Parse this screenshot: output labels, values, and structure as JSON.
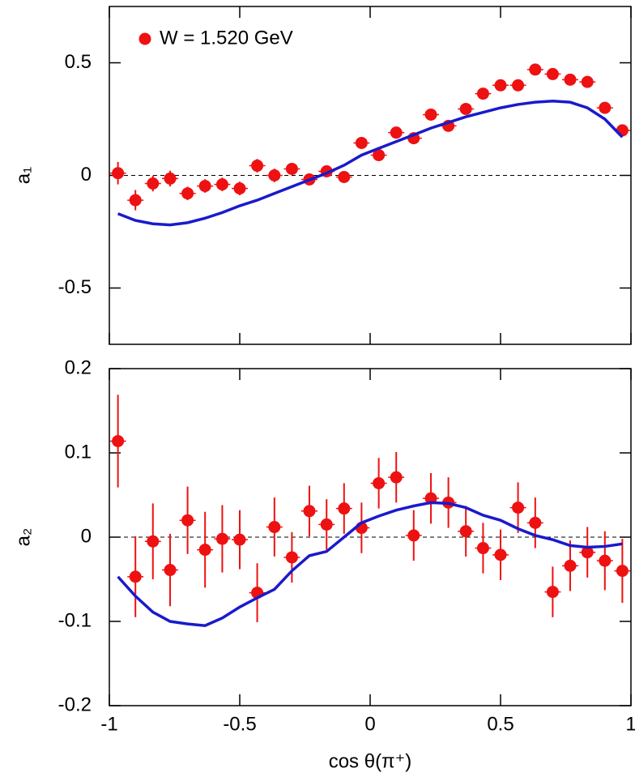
{
  "chart_data": [
    {
      "type": "scatter",
      "ylabel": "a₁",
      "x": [
        -0.967,
        -0.9,
        -0.833,
        -0.767,
        -0.7,
        -0.633,
        -0.567,
        -0.5,
        -0.433,
        -0.367,
        -0.3,
        -0.233,
        -0.167,
        -0.1,
        -0.033,
        0.033,
        0.1,
        0.167,
        0.233,
        0.3,
        0.367,
        0.433,
        0.5,
        0.567,
        0.633,
        0.7,
        0.767,
        0.833,
        0.9,
        0.967
      ],
      "series": [
        {
          "name": "W = 1.520 GeV",
          "type": "scatter",
          "color": "#ee1111",
          "values": [
            0.01,
            -0.11,
            -0.036,
            -0.014,
            -0.08,
            -0.047,
            -0.04,
            -0.058,
            0.043,
            0.0,
            0.029,
            -0.018,
            0.018,
            -0.007,
            0.144,
            0.09,
            0.19,
            0.165,
            0.27,
            0.22,
            0.295,
            0.363,
            0.4,
            0.4,
            0.47,
            0.45,
            0.425,
            0.415,
            0.3,
            0.2
          ],
          "errors": [
            0.05,
            0.045,
            0.035,
            0.035,
            0.03,
            0.03,
            0.03,
            0.03,
            0.03,
            0.03,
            0.025,
            0.025,
            0.025,
            0.025,
            0.025,
            0.02,
            0.02,
            0.02,
            0.02,
            0.02,
            0.02,
            0.02,
            0.02,
            0.02,
            0.02,
            0.02,
            0.02,
            0.02,
            0.025,
            0.025
          ]
        },
        {
          "type": "line",
          "color": "#1a1acc",
          "values": [
            -0.17,
            -0.2,
            -0.215,
            -0.22,
            -0.21,
            -0.19,
            -0.165,
            -0.135,
            -0.11,
            -0.08,
            -0.05,
            -0.02,
            0.01,
            0.045,
            0.09,
            0.12,
            0.15,
            0.18,
            0.21,
            0.235,
            0.26,
            0.28,
            0.3,
            0.315,
            0.325,
            0.33,
            0.325,
            0.3,
            0.25,
            0.17
          ]
        }
      ],
      "xlim": [
        -1,
        1
      ],
      "xticks": [
        -1,
        -0.5,
        0,
        0.5,
        1
      ],
      "xtick_labels": false,
      "ylim": [
        -0.75,
        0.75
      ],
      "yticks": [
        -0.5,
        0,
        0.5
      ],
      "zero_line": true,
      "legend": "upper left"
    },
    {
      "type": "scatter",
      "ylabel": "a₂",
      "xlabel": "cos θ(π⁺)",
      "x": [
        -0.967,
        -0.9,
        -0.833,
        -0.767,
        -0.7,
        -0.633,
        -0.567,
        -0.5,
        -0.433,
        -0.367,
        -0.3,
        -0.233,
        -0.167,
        -0.1,
        -0.033,
        0.033,
        0.1,
        0.167,
        0.233,
        0.3,
        0.367,
        0.433,
        0.5,
        0.567,
        0.633,
        0.7,
        0.767,
        0.833,
        0.9,
        0.967
      ],
      "series": [
        {
          "type": "scatter",
          "color": "#ee1111",
          "values": [
            0.114,
            -0.047,
            -0.005,
            -0.039,
            0.02,
            -0.015,
            -0.002,
            -0.003,
            -0.066,
            0.012,
            -0.024,
            0.031,
            0.015,
            0.034,
            0.011,
            0.064,
            0.071,
            0.002,
            0.046,
            0.041,
            0.007,
            -0.013,
            -0.021,
            0.035,
            0.017,
            -0.065,
            -0.034,
            -0.018,
            -0.028,
            -0.04
          ],
          "errors": [
            0.055,
            0.048,
            0.045,
            0.043,
            0.04,
            0.045,
            0.04,
            0.035,
            0.035,
            0.035,
            0.03,
            0.03,
            0.03,
            0.03,
            0.03,
            0.03,
            0.03,
            0.03,
            0.03,
            0.03,
            0.03,
            0.03,
            0.03,
            0.03,
            0.03,
            0.03,
            0.03,
            0.03,
            0.035,
            0.038
          ]
        },
        {
          "type": "line",
          "color": "#1a1acc",
          "values": [
            -0.047,
            -0.07,
            -0.089,
            -0.1,
            -0.103,
            -0.105,
            -0.096,
            -0.083,
            -0.072,
            -0.062,
            -0.04,
            -0.022,
            -0.017,
            0.0,
            0.017,
            0.025,
            0.032,
            0.037,
            0.041,
            0.04,
            0.035,
            0.026,
            0.02,
            0.01,
            0.002,
            -0.003,
            -0.01,
            -0.012,
            -0.011,
            -0.008
          ]
        }
      ],
      "xlim": [
        -1,
        1
      ],
      "xticks": [
        -1,
        -0.5,
        0,
        0.5,
        1
      ],
      "xtick_labels": true,
      "ylim": [
        -0.2,
        0.2
      ],
      "yticks": [
        -0.2,
        -0.1,
        0,
        0.1,
        0.2
      ],
      "zero_line": true
    }
  ]
}
